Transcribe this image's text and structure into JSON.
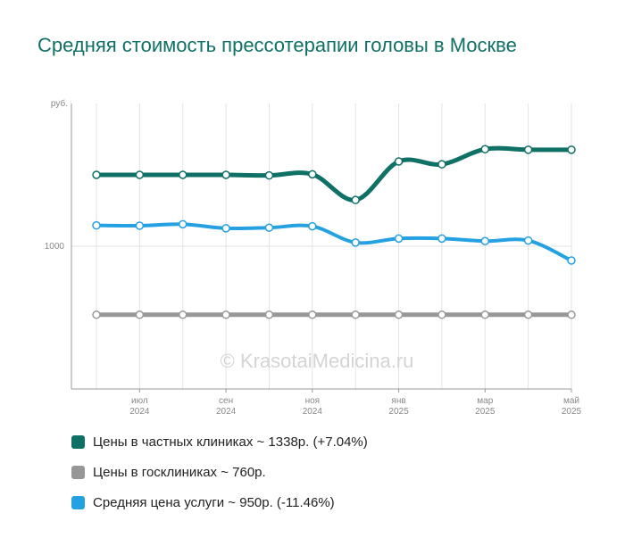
{
  "title": "Средняя стоимость прессотерапии головы в Москве",
  "watermark": "© KrasotaiMedicina.ru",
  "colors": {
    "private": "#0f7065",
    "public": "#979797",
    "average": "#25a1e2",
    "title": "#0f7065"
  },
  "chart_data": {
    "type": "line",
    "title": "Средняя стоимость прессотерапии головы в Москве",
    "ylabel": "руб.",
    "y_ticks": [
      1000
    ],
    "ylim": [
      500,
      1500
    ],
    "grid": true,
    "legend_position": "bottom",
    "x": [
      "2024-06",
      "2024-07",
      "2024-08",
      "2024-09",
      "2024-10",
      "2024-11",
      "2024-12",
      "2025-01",
      "2025-02",
      "2025-03",
      "2025-04",
      "2025-05"
    ],
    "x_tick_labels": [
      {
        "index": 1,
        "month": "июл",
        "year": "2024"
      },
      {
        "index": 3,
        "month": "сен",
        "year": "2024"
      },
      {
        "index": 5,
        "month": "ноя",
        "year": "2024"
      },
      {
        "index": 7,
        "month": "янв",
        "year": "2025"
      },
      {
        "index": 9,
        "month": "мар",
        "year": "2025"
      },
      {
        "index": 11,
        "month": "май",
        "year": "2025"
      }
    ],
    "series": [
      {
        "key": "private",
        "name": "Цены в частных клиниках ~ 1338р. (+7.04%)",
        "values": [
          1250,
          1250,
          1250,
          1250,
          1248,
          1252,
          1162,
          1297,
          1287,
          1340,
          1338,
          1338
        ]
      },
      {
        "key": "public",
        "name": "Цены в госклиниках ~ 760р.",
        "values": [
          760,
          760,
          760,
          760,
          760,
          760,
          760,
          760,
          760,
          760,
          760,
          760
        ]
      },
      {
        "key": "average",
        "name": "Средняя цена услуги ~ 950р. (-11.46%)",
        "values": [
          1073,
          1072,
          1077,
          1063,
          1065,
          1070,
          1013,
          1027,
          1027,
          1018,
          1020,
          950
        ]
      }
    ]
  }
}
